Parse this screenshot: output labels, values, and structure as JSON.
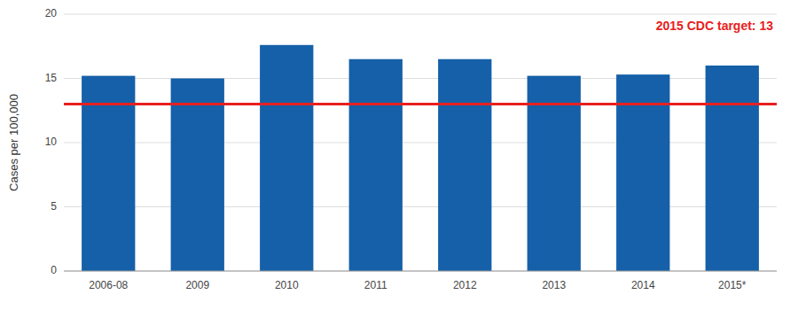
{
  "chart_data": {
    "type": "bar",
    "categories": [
      "2006-08",
      "2009",
      "2010",
      "2011",
      "2012",
      "2013",
      "2014",
      "2015*"
    ],
    "values": [
      15.2,
      15.0,
      17.6,
      16.5,
      16.5,
      15.2,
      15.3,
      16.0
    ],
    "color": "#1560a8",
    "ylabel": "Cases per 100,000",
    "ylim": [
      0,
      20
    ],
    "yticks": [
      0,
      5,
      10,
      15,
      20
    ],
    "grid": true,
    "target_line": {
      "value": 13,
      "label": "2015 CDC target: 13",
      "color": "#e82020"
    }
  }
}
